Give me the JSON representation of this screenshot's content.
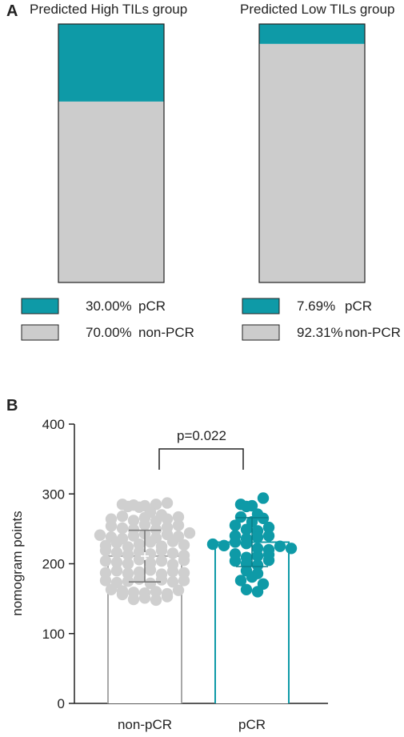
{
  "colors": {
    "pcr": "#0e9aa7",
    "non_pcr": "#cccccc",
    "non_pcr_dot": "#cfcfcf",
    "axis": "#222222",
    "nonpcr_bar_edge": "#a8a8a8"
  },
  "panel_a": {
    "label": "A",
    "groups": [
      {
        "title": "Predicted High TILs group",
        "pcr_fraction": 0.3,
        "legend": [
          {
            "value": "30.00%",
            "label": "pCR",
            "color_key": "pcr"
          },
          {
            "value": "70.00%",
            "label": "non-PCR",
            "color_key": "non_pcr"
          }
        ]
      },
      {
        "title": "Predicted Low TILs group",
        "pcr_fraction": 0.0769,
        "legend": [
          {
            "value": "7.69%",
            "label": "pCR",
            "color_key": "pcr"
          },
          {
            "value": "92.31%",
            "label": "non-PCR",
            "color_key": "non_pcr"
          }
        ]
      }
    ]
  },
  "panel_b": {
    "label": "B",
    "p_value_label": "p=0.022"
  },
  "chart_data": [
    {
      "type": "bar",
      "panel": "A",
      "stacked": true,
      "percent": true,
      "categories": [
        "Predicted High TILs group",
        "Predicted Low TILs group"
      ],
      "series": [
        {
          "name": "pCR",
          "values": [
            30.0,
            7.69
          ]
        },
        {
          "name": "non-PCR",
          "values": [
            70.0,
            92.31
          ]
        }
      ],
      "ylim": [
        0,
        100
      ]
    },
    {
      "type": "bar",
      "panel": "B",
      "overlay": "scatter",
      "categories": [
        "non-pCR",
        "pCR"
      ],
      "values": [
        211,
        231
      ],
      "sd": [
        37,
        35
      ],
      "ylabel": "nomogram points",
      "ylim": [
        0,
        400
      ],
      "yticks": [
        0,
        100,
        200,
        300,
        400
      ],
      "annotation": "p=0.022",
      "points": {
        "non-pCR": [
          285,
          282,
          281,
          284,
          274,
          283,
          285,
          287,
          264,
          268,
          262,
          266,
          270,
          261,
          264,
          267,
          254,
          251,
          249,
          256,
          249,
          252,
          255,
          241,
          238,
          236,
          240,
          243,
          237,
          242,
          239,
          244,
          226,
          230,
          224,
          228,
          231,
          225,
          232,
          227,
          219,
          216,
          213,
          217,
          214,
          219,
          215,
          212,
          204,
          202,
          200,
          206,
          201,
          204,
          199,
          205,
          187,
          190,
          186,
          188,
          191,
          185,
          189,
          187,
          176,
          173,
          175,
          178,
          172,
          177,
          174,
          176,
          163,
          161,
          159,
          158,
          156,
          160,
          157,
          162,
          149,
          151,
          148,
          153
        ],
        "pCR": [
          285,
          283,
          294,
          282,
          267,
          271,
          260,
          265,
          255,
          249,
          247,
          252,
          240,
          236,
          238,
          240,
          228,
          226,
          231,
          229,
          222,
          220,
          225,
          222,
          214,
          209,
          211,
          213,
          204,
          200,
          198,
          205,
          190,
          186,
          176,
          181,
          171,
          163,
          160
        ]
      }
    }
  ]
}
